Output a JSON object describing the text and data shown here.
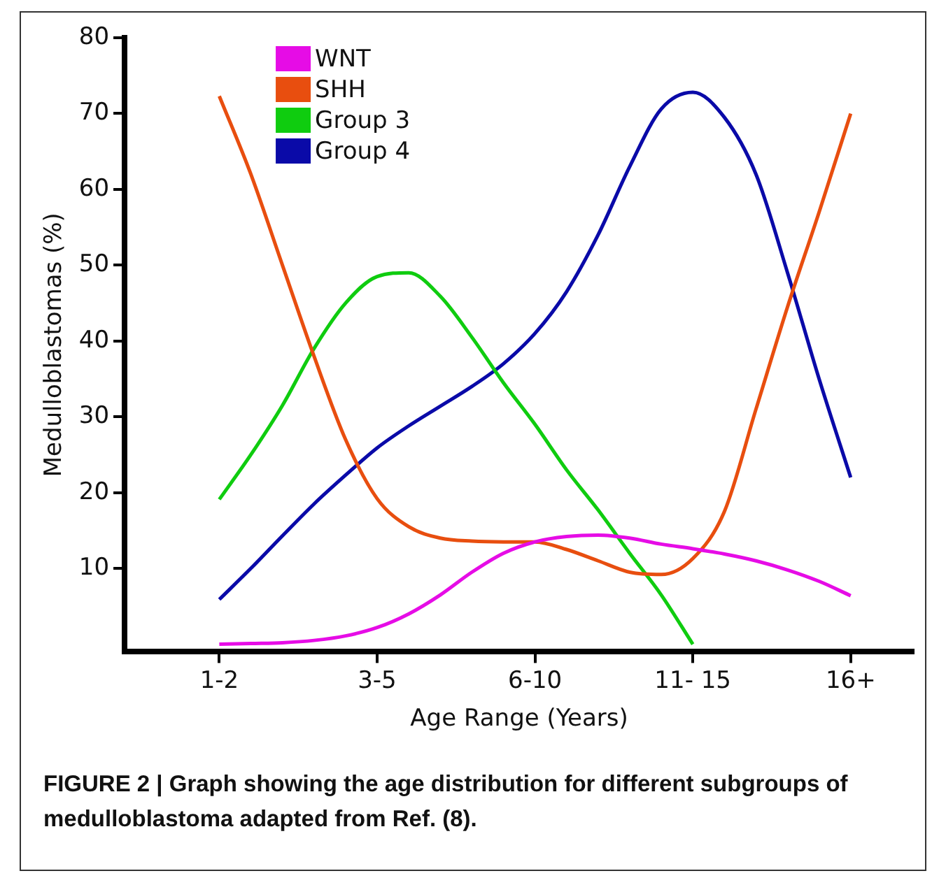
{
  "chart_data": {
    "type": "line",
    "xlabel": "Age Range (Years)",
    "ylabel": "Medulloblastomas (%)",
    "categories": [
      null,
      null,
      null,
      "1-2",
      null,
      null,
      null,
      null,
      "3-5",
      null,
      null,
      null,
      null,
      "6-10",
      null,
      null,
      null,
      null,
      "11- 15",
      null,
      null,
      null,
      null,
      "16+",
      null,
      null
    ],
    "ylim": [
      -1,
      80
    ],
    "yticks": [
      10,
      20,
      30,
      40,
      50,
      60,
      70,
      80
    ],
    "grid": false,
    "legend": "top left",
    "marker": "none",
    "line_style": "solid",
    "series": [
      {
        "name": "WNT",
        "color": "#e60ce6",
        "values": [
          null,
          null,
          null,
          0,
          0.1,
          0.2,
          0.5,
          1.1,
          2.2,
          4,
          6.5,
          9.5,
          12,
          13.5,
          14.2,
          14.4,
          14,
          13.2,
          12.6,
          11.9,
          11,
          9.8,
          8.3,
          6.4,
          null,
          null
        ]
      },
      {
        "name": "SHH",
        "color": "#e84e0f",
        "values": [
          null,
          null,
          null,
          72.3,
          62,
          50,
          38,
          27,
          19.2,
          15.5,
          14,
          13.6,
          13.5,
          13.5,
          12.5,
          11,
          9.5,
          9.2,
          11.3,
          17.5,
          31,
          44.5,
          57,
          70,
          null,
          null
        ]
      },
      {
        "name": "Group 3",
        "color": "#0fcc0f",
        "values": [
          null,
          null,
          null,
          19.1,
          25,
          31.5,
          39,
          45,
          48.5,
          49,
          45.9,
          40.5,
          34.5,
          29,
          23,
          17.7,
          12,
          6.5,
          0,
          null,
          null,
          null,
          null,
          null,
          null,
          null
        ]
      },
      {
        "name": "Group 4",
        "color": "#0a0aa8",
        "values": [
          null,
          null,
          null,
          5.9,
          10,
          14.3,
          18.5,
          22.3,
          25.9,
          28.8,
          31.4,
          34,
          37,
          41,
          46.5,
          54,
          63,
          70.6,
          72.8,
          69.5,
          62,
          49,
          35,
          22,
          null,
          null
        ]
      }
    ],
    "annotations": [
      "FIGURE 2 | Graph showing the age distribution for different subgroups of medulloblastoma adapted from Ref. (8)."
    ]
  }
}
